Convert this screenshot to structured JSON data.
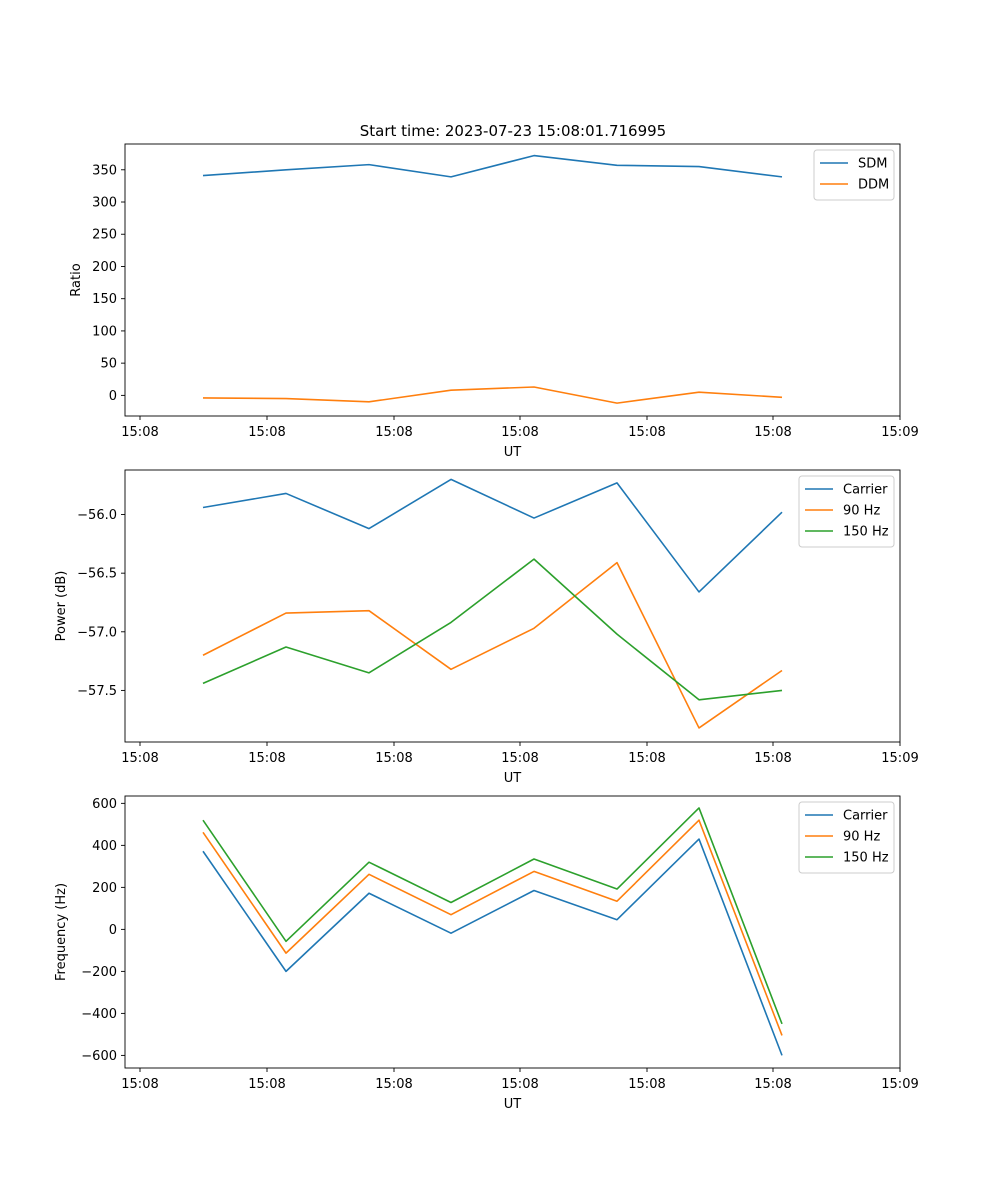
{
  "figure": {
    "title": "Start time: 2023-07-23 15:08:01.716995"
  },
  "chart_data": [
    {
      "type": "line",
      "xlabel": "UT",
      "ylabel": "Ratio",
      "x_ticks": [
        "15:08",
        "15:08",
        "15:08",
        "15:08",
        "15:08",
        "15:08",
        "15:09"
      ],
      "ylim": [
        -32,
        390
      ],
      "y_ticks": [
        0,
        50,
        100,
        150,
        200,
        250,
        300,
        350
      ],
      "legend_position": "top-right",
      "series": [
        {
          "name": "SDM",
          "color": "#1f77b4",
          "values": [
            341,
            350,
            358,
            339,
            372,
            357,
            355,
            339
          ]
        },
        {
          "name": "DDM",
          "color": "#ff7f0e",
          "values": [
            -4,
            -5,
            -10,
            8,
            13,
            -12,
            5,
            -3
          ]
        }
      ]
    },
    {
      "type": "line",
      "xlabel": "UT",
      "ylabel": "Power (dB)",
      "x_ticks": [
        "15:08",
        "15:08",
        "15:08",
        "15:08",
        "15:08",
        "15:08",
        "15:09"
      ],
      "ylim": [
        -57.94,
        -55.62
      ],
      "y_ticks": [
        -57.5,
        -57.0,
        -56.5,
        -56.0
      ],
      "y_tick_labels": [
        "−57.5",
        "−57.0",
        "−56.5",
        "−56.0"
      ],
      "legend_position": "top-right",
      "series": [
        {
          "name": "Carrier",
          "color": "#1f77b4",
          "values": [
            -55.94,
            -55.82,
            -56.12,
            -55.7,
            -56.03,
            -55.73,
            -56.66,
            -55.98
          ]
        },
        {
          "name": "90 Hz",
          "color": "#ff7f0e",
          "values": [
            -57.2,
            -56.84,
            -56.82,
            -57.32,
            -56.97,
            -56.41,
            -57.82,
            -57.33
          ]
        },
        {
          "name": "150 Hz",
          "color": "#2ca02c",
          "values": [
            -57.44,
            -57.13,
            -57.35,
            -56.92,
            -56.38,
            -57.02,
            -57.58,
            -57.5
          ]
        }
      ]
    },
    {
      "type": "line",
      "xlabel": "UT",
      "ylabel": "Frequency (Hz)",
      "x_ticks": [
        "15:08",
        "15:08",
        "15:08",
        "15:08",
        "15:08",
        "15:08",
        "15:09"
      ],
      "ylim": [
        -660,
        635
      ],
      "y_ticks": [
        -600,
        -400,
        -200,
        0,
        200,
        400,
        600
      ],
      "y_tick_labels": [
        "−600",
        "−400",
        "−200",
        "0",
        "200",
        "400",
        "600"
      ],
      "legend_position": "top-right",
      "series": [
        {
          "name": "Carrier",
          "color": "#1f77b4",
          "values": [
            372,
            -200,
            172,
            -18,
            185,
            46,
            430,
            -600
          ]
        },
        {
          "name": "90 Hz",
          "color": "#ff7f0e",
          "values": [
            462,
            -113,
            262,
            70,
            276,
            134,
            520,
            -505
          ]
        },
        {
          "name": "150 Hz",
          "color": "#2ca02c",
          "values": [
            520,
            -57,
            320,
            128,
            335,
            192,
            578,
            -450
          ]
        }
      ]
    }
  ]
}
